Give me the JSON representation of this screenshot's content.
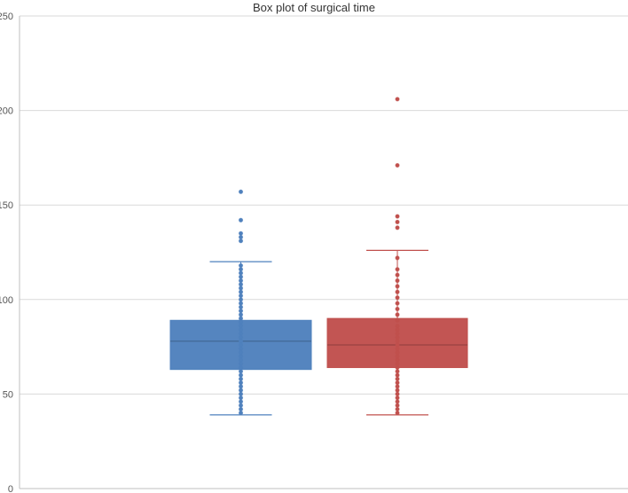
{
  "chart_data": {
    "type": "box",
    "title": "Box plot of surgical time",
    "xlabel": "",
    "ylabel": "",
    "ylim": [
      0,
      250
    ],
    "yticks": [
      0,
      50,
      100,
      150,
      200,
      250
    ],
    "grid": true,
    "legend": "none",
    "series": [
      {
        "color": "#4f81bd",
        "whisker_low": 39,
        "q1": 63,
        "median": 78,
        "q3": 89,
        "whisker_high": 120,
        "points": [
          157,
          142,
          135,
          133,
          131,
          118,
          116,
          114,
          112,
          110,
          108,
          106,
          104,
          102,
          100,
          98,
          96,
          94,
          92,
          90,
          88,
          86,
          84,
          82,
          80,
          78,
          76,
          74,
          72,
          70,
          68,
          66,
          64,
          62,
          60,
          58,
          56,
          54,
          52,
          50,
          48,
          46,
          44,
          42,
          40
        ]
      },
      {
        "color": "#c0504d",
        "whisker_low": 39,
        "q1": 64,
        "median": 76,
        "q3": 90,
        "whisker_high": 126,
        "points": [
          206,
          171,
          144,
          141,
          138,
          122,
          116,
          113,
          110,
          107,
          104,
          101,
          98,
          95,
          92,
          89,
          86,
          84,
          82,
          80,
          78,
          76,
          74,
          72,
          70,
          68,
          66,
          64,
          62,
          60,
          58,
          56,
          54,
          52,
          50,
          48,
          46,
          44,
          42,
          40
        ]
      }
    ]
  }
}
